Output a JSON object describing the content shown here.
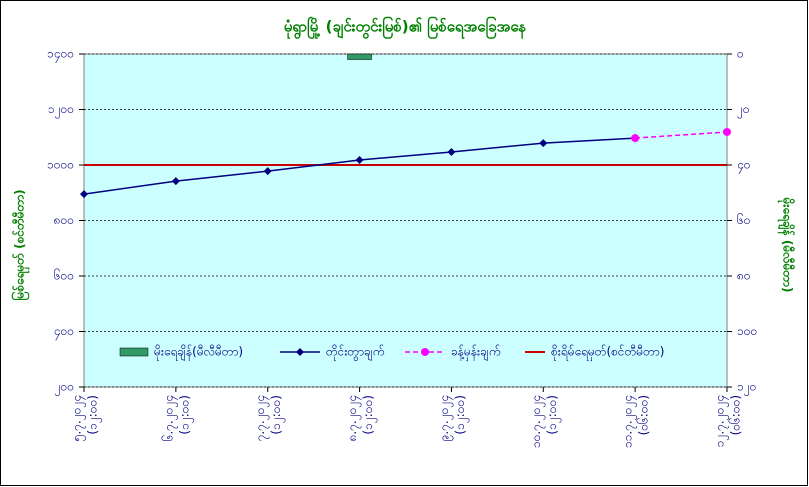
{
  "chart_data": {
    "type": "line",
    "title": "မုံရွာမြို့ (ချင်းတွင်းမြစ်)၏ မြစ်ရေအခြေအနေ",
    "y_label": "မြစ်ရေမှတ် (စင်တီမီတာ)",
    "y2_label": "မိုးရေချိန် (မီလီမီတာ)",
    "categories": [
      "၅.၇.၂၀၂၄",
      "၆.၇.၂၀၂၄",
      "၇.၇.၂၀၂၄",
      "၈.၇.၂၀၂၄",
      "၉.၇.၂၀၂၄",
      "၁၀.၇.၂၀၂၄",
      "၁၁.၇.၂၀၂၄",
      "၁၂.၇.၂၀၂၄"
    ],
    "category_times": [
      "(၁၂:၀၀)",
      "(၁၂:၀၀)",
      "(၁၂:၀၀)",
      "(၁၂:၀၀)",
      "(၁၂:၀၀)",
      "(၁၂:၀၀)",
      "(၀၆:၀၀)",
      "(၀၆:၀၀)"
    ],
    "ylim": [
      200,
      1400
    ],
    "yticks": [
      {
        "value": 200,
        "label": "၂၀၀"
      },
      {
        "value": 400,
        "label": "၄၀၀"
      },
      {
        "value": 600,
        "label": "၆၀၀"
      },
      {
        "value": 800,
        "label": "၈၀၀"
      },
      {
        "value": 1000,
        "label": "၁၀၀၀"
      },
      {
        "value": 1200,
        "label": "၁၂၀၀"
      },
      {
        "value": 1400,
        "label": "၁၄၀၀"
      }
    ],
    "y2lim": [
      120,
      0
    ],
    "y2ticks": [
      {
        "value": 0,
        "label": "၀"
      },
      {
        "value": 20,
        "label": "၂၀"
      },
      {
        "value": 40,
        "label": "၄၀"
      },
      {
        "value": 60,
        "label": "၆၀"
      },
      {
        "value": 80,
        "label": "၈၀"
      },
      {
        "value": 100,
        "label": "၁၀၀"
      },
      {
        "value": 120,
        "label": "၁၂၀"
      }
    ],
    "grid": true,
    "series": [
      {
        "name": "မိုးရေချိန်(မီလီမီတာ)",
        "kind": "bar",
        "axis": "y2",
        "color": "#339966",
        "values": [
          0,
          0,
          0,
          2,
          0,
          0,
          0,
          0
        ]
      },
      {
        "name": "တိုင်းတွာချက်",
        "kind": "line",
        "color": "#000080",
        "values": [
          895,
          942,
          978,
          1018,
          1047,
          1079,
          1097,
          null
        ]
      },
      {
        "name": "ခန့်မှန်းချက်",
        "kind": "dashed",
        "color": "#ff00ff",
        "values": [
          null,
          null,
          null,
          null,
          null,
          null,
          1097,
          1119
        ]
      }
    ],
    "danger": {
      "name": "စိုးရိမ်ရေမှတ်(စင်တီမီတာ)",
      "value": 1000,
      "color": "#cc0000"
    }
  }
}
